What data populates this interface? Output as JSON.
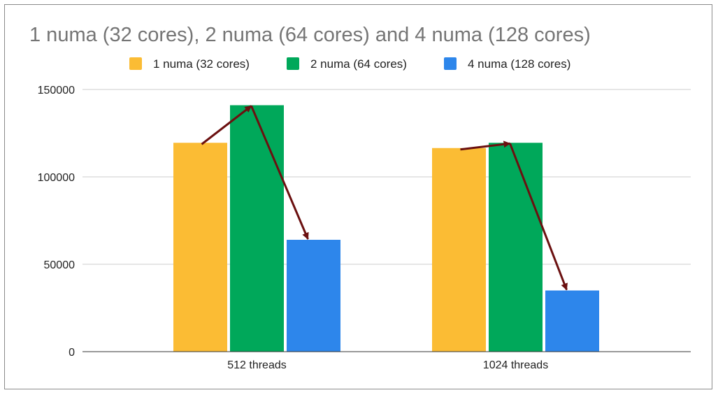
{
  "chart_data": {
    "type": "bar",
    "title": "1 numa (32 cores), 2 numa (64 cores) and 4 numa (128 cores)",
    "categories": [
      "512 threads",
      "1024 threads"
    ],
    "series": [
      {
        "name": "1 numa (32 cores)",
        "color": "#fbbc34",
        "values": [
          119500,
          116500
        ]
      },
      {
        "name": "2 numa (64 cores)",
        "color": "#00a85a",
        "values": [
          141000,
          119500
        ]
      },
      {
        "name": "4 numa (128 cores)",
        "color": "#2d86eb",
        "values": [
          64000,
          35000
        ]
      }
    ],
    "ylim": [
      0,
      150000
    ],
    "yticks": [
      0,
      50000,
      100000,
      150000
    ],
    "ytick_labels": [
      "0",
      "50000",
      "100000",
      "150000"
    ],
    "grid": true,
    "legend_position": "top",
    "arrow_color": "#6b1010",
    "annotations": [
      {
        "type": "arrow",
        "from": {
          "category": "512 threads",
          "series": 0
        },
        "to": {
          "category": "512 threads",
          "series": 1
        }
      },
      {
        "type": "arrow",
        "from": {
          "category": "512 threads",
          "series": 1
        },
        "to": {
          "category": "512 threads",
          "series": 2
        }
      },
      {
        "type": "arrow",
        "from": {
          "category": "1024 threads",
          "series": 0
        },
        "to": {
          "category": "1024 threads",
          "series": 1
        }
      },
      {
        "type": "arrow",
        "from": {
          "category": "1024 threads",
          "series": 1
        },
        "to": {
          "category": "1024 threads",
          "series": 2
        }
      }
    ]
  }
}
